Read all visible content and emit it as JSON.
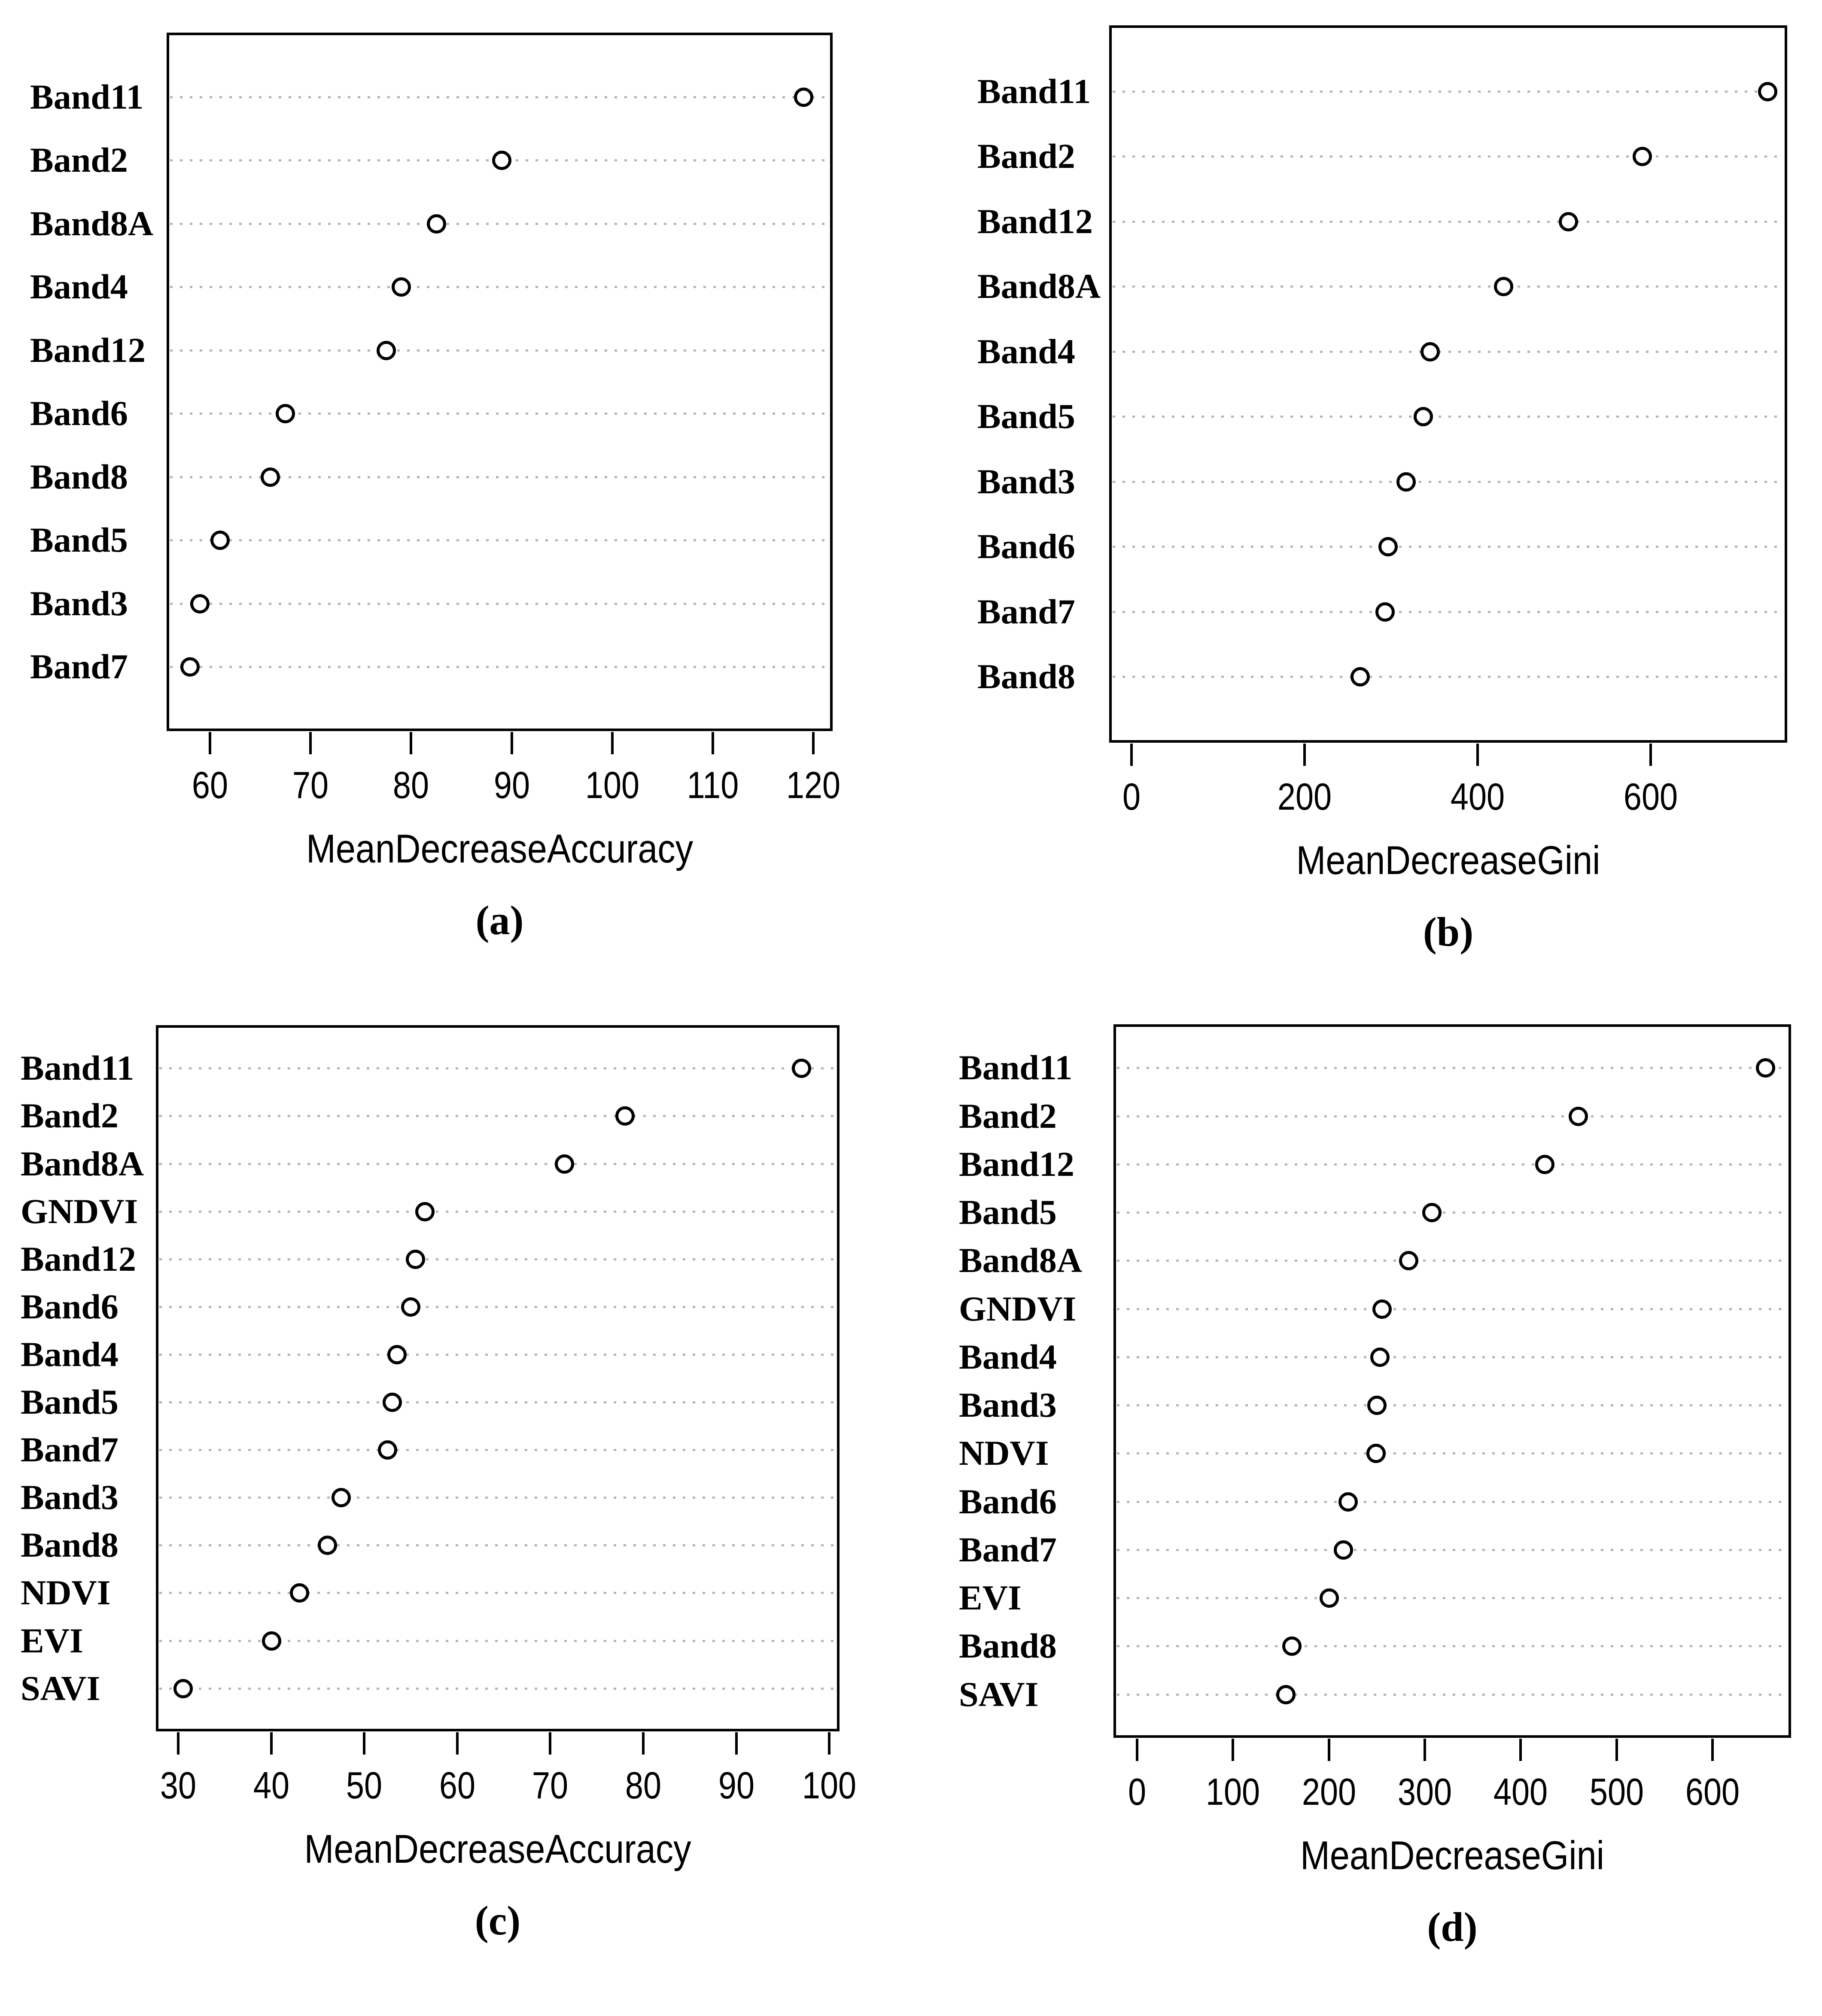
{
  "figure": {
    "description": "Random forest variable importance dot plots, four panels",
    "background": "#ffffff"
  },
  "colors": {
    "marker_stroke": "#000000",
    "marker_fill": "#ffffff",
    "gridline": "#b3b3b3",
    "box_border": "#000000",
    "text": "#000000"
  },
  "chart_data": [
    {
      "panel": "a",
      "type": "scatter",
      "marker": "open-circle",
      "grid": "dotted-horizontal",
      "legend": "none",
      "xlabel": "MeanDecreaseAccuracy",
      "caption": "(a)",
      "xticks": [
        60,
        70,
        80,
        90,
        100,
        110,
        120
      ],
      "xlim": [
        55.7,
        121.9
      ],
      "categories": [
        "Band11",
        "Band2",
        "Band8A",
        "Band4",
        "Band12",
        "Band6",
        "Band8",
        "Band5",
        "Band3",
        "Band7"
      ],
      "values": [
        119,
        89,
        82.5,
        79,
        77.5,
        67.5,
        66,
        61,
        59,
        58
      ]
    },
    {
      "panel": "b",
      "type": "scatter",
      "marker": "open-circle",
      "grid": "dotted-horizontal",
      "legend": "none",
      "xlabel": "MeanDecreaseGini",
      "caption": "(b)",
      "xticks": [
        0,
        200,
        400,
        600
      ],
      "xlim": [
        -26,
        758
      ],
      "categories": [
        "Band11",
        "Band2",
        "Band12",
        "Band8A",
        "Band4",
        "Band5",
        "Band3",
        "Band6",
        "Band7",
        "Band8"
      ],
      "values": [
        735,
        590,
        505,
        430,
        345,
        337,
        317,
        296,
        293,
        264
      ]
    },
    {
      "panel": "c",
      "type": "scatter",
      "marker": "open-circle",
      "grid": "dotted-horizontal",
      "legend": "none",
      "xlabel": "MeanDecreaseAccuracy",
      "caption": "(c)",
      "xticks": [
        30,
        40,
        50,
        60,
        70,
        80,
        90,
        100
      ],
      "xlim": [
        27.6,
        101.1
      ],
      "categories": [
        "Band11",
        "Band2",
        "Band8A",
        "GNDVI",
        "Band12",
        "Band6",
        "Band4",
        "Band5",
        "Band7",
        "Band3",
        "Band8",
        "NDVI",
        "EVI",
        "SAVI"
      ],
      "values": [
        97,
        78,
        71.5,
        56.5,
        55.5,
        55,
        53.5,
        53,
        52.5,
        47.5,
        46,
        43,
        40,
        30.5
      ]
    },
    {
      "panel": "d",
      "type": "scatter",
      "marker": "open-circle",
      "grid": "dotted-horizontal",
      "legend": "none",
      "xlabel": "MeanDecreaseGini",
      "caption": "(d)",
      "xticks": [
        0,
        100,
        200,
        300,
        400,
        500,
        600
      ],
      "xlim": [
        -24.7,
        682
      ],
      "categories": [
        "Band11",
        "Band2",
        "Band12",
        "Band5",
        "Band8A",
        "GNDVI",
        "Band4",
        "Band3",
        "NDVI",
        "Band6",
        "Band7",
        "EVI",
        "Band8",
        "SAVI"
      ],
      "values": [
        655,
        460,
        425,
        307,
        283,
        255,
        253,
        250,
        249,
        220,
        215,
        200,
        161,
        155
      ]
    }
  ]
}
